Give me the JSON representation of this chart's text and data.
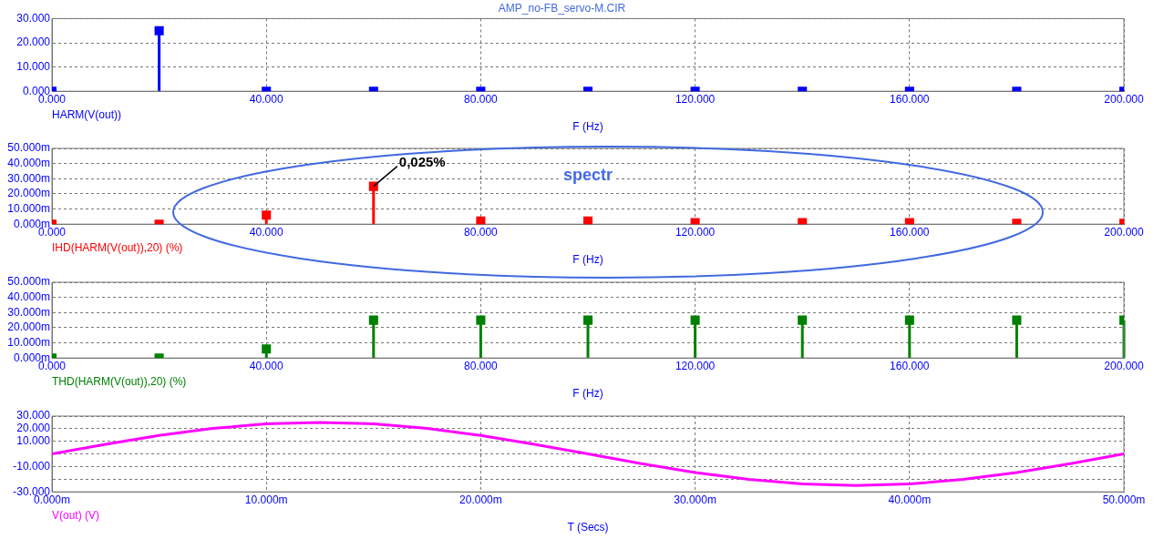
{
  "chart_data": [
    {
      "type": "lollipop",
      "title": "AMP_no-FB_servo-M.CIR",
      "xlabel": "F (Hz)",
      "x": [
        0,
        20,
        40,
        60,
        80,
        100,
        120,
        140,
        160,
        180,
        200
      ],
      "series": [
        {
          "name": "HARM(V(out))",
          "color": "#0000ff",
          "values": [
            0,
            25,
            0,
            0,
            0,
            0,
            0,
            0,
            0,
            0,
            0
          ]
        }
      ],
      "xlim": [
        0,
        200
      ],
      "xticks": [
        {
          "value": 0,
          "label": "0.000"
        },
        {
          "value": 40,
          "label": "40.000"
        },
        {
          "value": 80,
          "label": "80.000"
        },
        {
          "value": 120,
          "label": "120.000"
        },
        {
          "value": 160,
          "label": "160.000"
        },
        {
          "value": 200,
          "label": "200.000"
        }
      ],
      "ylim": [
        0,
        30
      ],
      "yticks": [
        {
          "value": 0,
          "label": "0.000"
        },
        {
          "value": 10,
          "label": "10.000"
        },
        {
          "value": 20,
          "label": "20.000"
        },
        {
          "value": 30,
          "label": "30.000"
        }
      ],
      "grid": true,
      "marker": "square"
    },
    {
      "type": "lollipop",
      "xlabel": "F (Hz)",
      "x": [
        0,
        20,
        40,
        60,
        80,
        100,
        120,
        140,
        160,
        180,
        200
      ],
      "series": [
        {
          "name": "IHD(HARM(V(out)),20) (%)",
          "color": "#ff0000",
          "values": [
            0,
            0,
            6,
            25,
            2,
            2,
            1,
            1,
            1,
            0.5,
            0.5
          ]
        }
      ],
      "xlim": [
        0,
        200
      ],
      "xticks": [
        {
          "value": 0,
          "label": "0.000"
        },
        {
          "value": 40,
          "label": "40.000"
        },
        {
          "value": 80,
          "label": "80.000"
        },
        {
          "value": 120,
          "label": "120.000"
        },
        {
          "value": 160,
          "label": "160.000"
        },
        {
          "value": 200,
          "label": "200.000"
        }
      ],
      "ylim": [
        0,
        50
      ],
      "yticks": [
        {
          "value": 0,
          "label": "0.000m"
        },
        {
          "value": 10,
          "label": "10.000m"
        },
        {
          "value": 20,
          "label": "20.000m"
        },
        {
          "value": 30,
          "label": "30.000m"
        },
        {
          "value": 40,
          "label": "40.000m"
        },
        {
          "value": 50,
          "label": "50.000m"
        }
      ],
      "grid": true,
      "marker": "square",
      "annotations": [
        {
          "text": "0,025%",
          "x": 60,
          "y": 25
        },
        "spectr"
      ]
    },
    {
      "type": "lollipop",
      "xlabel": "F (Hz)",
      "x": [
        0,
        20,
        40,
        60,
        80,
        100,
        120,
        140,
        160,
        180,
        200
      ],
      "series": [
        {
          "name": "THD(HARM(V(out)),20) (%)",
          "color": "#008000",
          "values": [
            0,
            0,
            6,
            25,
            25,
            25,
            25,
            25,
            25,
            25,
            25
          ]
        }
      ],
      "xlim": [
        0,
        200
      ],
      "xticks": [
        {
          "value": 0,
          "label": "0.000"
        },
        {
          "value": 40,
          "label": "40.000"
        },
        {
          "value": 80,
          "label": "80.000"
        },
        {
          "value": 120,
          "label": "120.000"
        },
        {
          "value": 160,
          "label": "160.000"
        },
        {
          "value": 200,
          "label": "200.000"
        }
      ],
      "ylim": [
        0,
        50
      ],
      "yticks": [
        {
          "value": 0,
          "label": "0.000m"
        },
        {
          "value": 10,
          "label": "10.000m"
        },
        {
          "value": 20,
          "label": "20.000m"
        },
        {
          "value": 30,
          "label": "30.000m"
        },
        {
          "value": 40,
          "label": "40.000m"
        },
        {
          "value": 50,
          "label": "50.000m"
        }
      ],
      "grid": true,
      "marker": "square"
    },
    {
      "type": "line",
      "xlabel": "T (Secs)",
      "x": [
        0,
        2.5,
        5,
        7.5,
        10,
        12.5,
        15,
        17.5,
        20,
        22.5,
        25,
        27.5,
        30,
        32.5,
        35,
        37.5,
        40,
        42.5,
        45,
        47.5,
        50
      ],
      "series": [
        {
          "name": "V(out) (V)",
          "color": "#ff00ff",
          "values": [
            0,
            7.7,
            14.7,
            20.2,
            23.8,
            25,
            23.8,
            20.2,
            14.7,
            7.7,
            0,
            -7.7,
            -14.7,
            -20.2,
            -23.8,
            -25,
            -23.8,
            -20.2,
            -14.7,
            -7.7,
            0
          ]
        }
      ],
      "xlim": [
        0,
        50
      ],
      "xticks": [
        {
          "value": 0,
          "label": "0.000m"
        },
        {
          "value": 10,
          "label": "10.000m"
        },
        {
          "value": 20,
          "label": "20.000m"
        },
        {
          "value": 30,
          "label": "30.000m"
        },
        {
          "value": 40,
          "label": "40.000m"
        },
        {
          "value": 50,
          "label": "50.000m"
        }
      ],
      "ylim": [
        -30,
        30
      ],
      "yticks": [
        {
          "value": -30,
          "label": "-30.000"
        },
        {
          "value": -20,
          "label": null
        },
        {
          "value": -10,
          "label": "-10.000"
        },
        {
          "value": 0,
          "label": null
        },
        {
          "value": 10,
          "label": "10.000"
        },
        {
          "value": 20,
          "label": "20.000"
        },
        {
          "value": 30,
          "label": "30.000"
        }
      ],
      "grid": true,
      "marker": "none"
    }
  ]
}
